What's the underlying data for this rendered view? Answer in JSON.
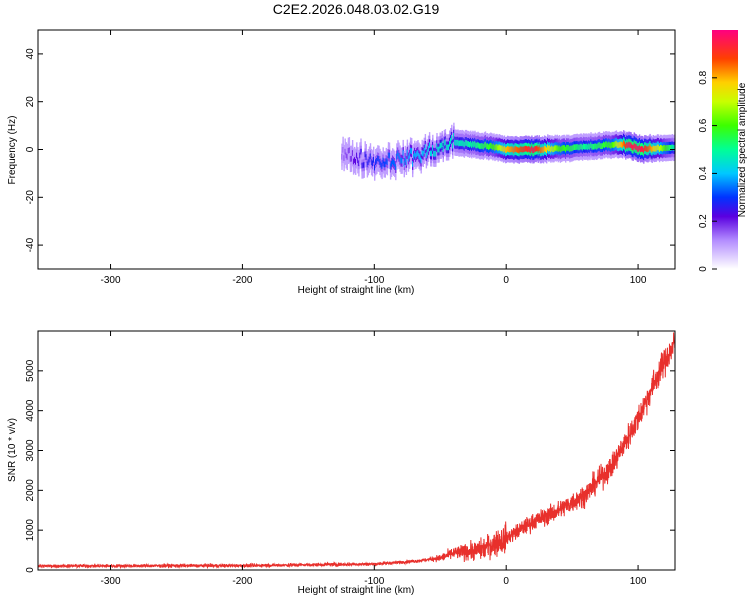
{
  "title": "C2E2.2026.048.03.02.G19",
  "chart_data": [
    {
      "type": "heatmap",
      "xlabel": "Height of straight line (km)",
      "ylabel": "Frequency (Hz)",
      "xlim": [
        -355,
        128
      ],
      "ylim": [
        -50,
        50
      ],
      "x_ticks": [
        -300,
        -200,
        -100,
        0,
        100
      ],
      "y_ticks": [
        -40,
        -20,
        0,
        20,
        40
      ],
      "colorbar": {
        "label": "Normalized spectral amplitude",
        "range": [
          0,
          1
        ],
        "ticks": [
          0,
          0.2,
          0.4,
          0.6,
          0.8
        ]
      },
      "ridge": [
        {
          "x": -125,
          "y": -2,
          "amp": 0.15
        },
        {
          "x": -110,
          "y": -4,
          "amp": 0.25
        },
        {
          "x": -95,
          "y": -5,
          "amp": 0.3
        },
        {
          "x": -80,
          "y": -4,
          "amp": 0.35
        },
        {
          "x": -65,
          "y": -2,
          "amp": 0.4
        },
        {
          "x": -50,
          "y": 1,
          "amp": 0.45
        },
        {
          "x": -40,
          "y": 3,
          "amp": 0.45
        },
        {
          "x": -25,
          "y": 2,
          "amp": 0.5
        },
        {
          "x": -10,
          "y": 1,
          "amp": 0.6
        },
        {
          "x": 0,
          "y": 0,
          "amp": 0.8
        },
        {
          "x": 20,
          "y": 0,
          "amp": 0.95
        },
        {
          "x": 40,
          "y": 0.5,
          "amp": 0.6
        },
        {
          "x": 60,
          "y": 1,
          "amp": 0.5
        },
        {
          "x": 80,
          "y": 2,
          "amp": 0.6
        },
        {
          "x": 92,
          "y": 2,
          "amp": 0.95
        },
        {
          "x": 103,
          "y": 0,
          "amp": 0.95
        },
        {
          "x": 128,
          "y": 1,
          "amp": 0.45
        }
      ]
    },
    {
      "type": "line",
      "xlabel": "Height of straight line (km)",
      "ylabel": "SNR (10 * v/v)",
      "xlim": [
        -355,
        128
      ],
      "ylim": [
        0,
        6000
      ],
      "x_ticks": [
        -300,
        -200,
        -100,
        0,
        100
      ],
      "y_ticks": [
        0,
        1000,
        2000,
        3000,
        4000,
        5000
      ],
      "color": "#e8302c",
      "trend": [
        {
          "x": -355,
          "y": 100
        },
        {
          "x": -200,
          "y": 110
        },
        {
          "x": -100,
          "y": 150
        },
        {
          "x": -70,
          "y": 220
        },
        {
          "x": -50,
          "y": 300
        },
        {
          "x": -40,
          "y": 420
        },
        {
          "x": -20,
          "y": 500
        },
        {
          "x": 0,
          "y": 800
        },
        {
          "x": 20,
          "y": 1200
        },
        {
          "x": 40,
          "y": 1500
        },
        {
          "x": 60,
          "y": 1900
        },
        {
          "x": 80,
          "y": 2600
        },
        {
          "x": 100,
          "y": 3800
        },
        {
          "x": 115,
          "y": 4900
        },
        {
          "x": 128,
          "y": 5700
        }
      ]
    }
  ]
}
